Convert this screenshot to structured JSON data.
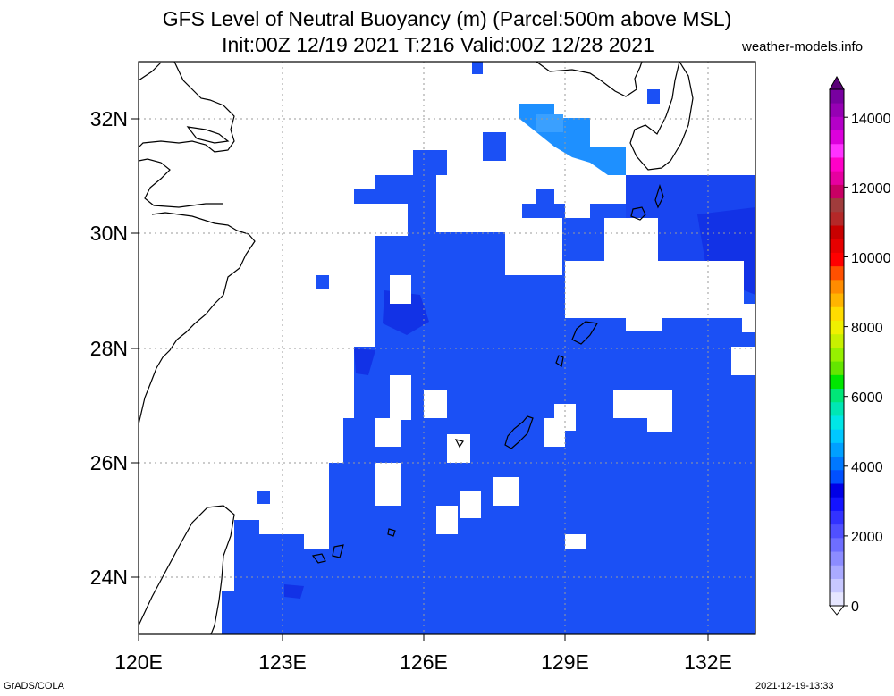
{
  "header": {
    "title_line1": "GFS Level of Neutral Buoyancy (m) (Parcel:500m above MSL)",
    "title_line2": "Init:00Z 12/19 2021 T:216 Valid:00Z 12/28 2021",
    "site": "weather-models.info"
  },
  "footer": {
    "left": "GrADS/COLA",
    "right": "2021-12-19-13:33"
  },
  "map": {
    "lon_labels": [
      "120E",
      "123E",
      "126E",
      "129E",
      "132E"
    ],
    "lat_labels": [
      "32N",
      "30N",
      "28N",
      "26N",
      "24N"
    ],
    "field_color": "#1b50f5",
    "field_dark_color": "#1232e6",
    "field_light_color": "#1e90ff"
  },
  "colorbar": {
    "labels": [
      "0",
      "2000",
      "4000",
      "6000",
      "8000",
      "10000",
      "12000",
      "14000"
    ],
    "colors": [
      "#e6e6ff",
      "#c8c8ff",
      "#aaaaff",
      "#8c8cff",
      "#6e6eff",
      "#5050ff",
      "#3232ff",
      "#1414ff",
      "#0000e6",
      "#0050ff",
      "#0078ff",
      "#00a0ff",
      "#00c8ff",
      "#00e6e6",
      "#00e6b4",
      "#00e678",
      "#00e600",
      "#64e600",
      "#96f000",
      "#c8f000",
      "#f0f000",
      "#ffdc00",
      "#ffb400",
      "#ff8c00",
      "#ff5000",
      "#ff0000",
      "#e60000",
      "#c80000",
      "#b42828",
      "#a03c3c",
      "#c80064",
      "#e600a0",
      "#ff00c8",
      "#ff32ff",
      "#dc00dc",
      "#b400c8",
      "#9600b4",
      "#7800a0"
    ]
  }
}
